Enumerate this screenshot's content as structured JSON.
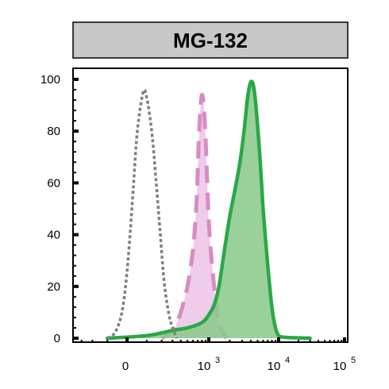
{
  "chart_data": {
    "type": "area",
    "title": "MG-132",
    "xlabel": "",
    "ylabel": "",
    "x_scale": "biexponential",
    "ylim": [
      0,
      100
    ],
    "y_ticks": [
      {
        "value": 0,
        "label": "0"
      },
      {
        "value": 20,
        "label": "20"
      },
      {
        "value": 40,
        "label": "40"
      },
      {
        "value": 60,
        "label": "60"
      },
      {
        "value": 80,
        "label": "80"
      },
      {
        "value": 100,
        "label": "100"
      }
    ],
    "x_ticks": [
      {
        "value": 0,
        "base": "0",
        "exp": ""
      },
      {
        "value": 1000,
        "base": "10",
        "exp": "3"
      },
      {
        "value": 10000,
        "base": "10",
        "exp": "4"
      },
      {
        "value": 100000,
        "base": "10",
        "exp": "5"
      }
    ],
    "grid": false,
    "colors": {
      "title_bg": "#c8c8c8",
      "control": "#808080",
      "pink_line": "#d98cc2",
      "pink_fill": "#eeccea",
      "green_line": "#2aa847",
      "green_fill": "#88c98a"
    },
    "series": [
      {
        "style": "dotted-gray-no-fill",
        "x": [
          -100,
          -60,
          -30,
          -10,
          10,
          30,
          50,
          80,
          100,
          130,
          160,
          190,
          220,
          260,
          300,
          350
        ],
        "values": [
          0,
          2,
          8,
          18,
          35,
          58,
          80,
          95,
          93,
          80,
          60,
          40,
          22,
          10,
          4,
          0
        ]
      },
      {
        "style": "dashed-pink-filled",
        "x": [
          200,
          280,
          340,
          400,
          450,
          500,
          560,
          620,
          680,
          720,
          760,
          800,
          850,
          900,
          950,
          1000,
          1100,
          1250,
          1400,
          1600,
          1800
        ],
        "values": [
          0,
          2,
          5,
          10,
          15,
          20,
          28,
          38,
          55,
          75,
          88,
          94,
          90,
          78,
          60,
          45,
          30,
          15,
          6,
          2,
          0
        ]
      },
      {
        "style": "solid-green-filled",
        "x": [
          -100,
          100,
          300,
          500,
          800,
          1000,
          1200,
          1400,
          1700,
          2000,
          2400,
          2800,
          3200,
          3600,
          4000,
          4400,
          4800,
          5400,
          6000,
          7000,
          8000,
          9000,
          10000,
          12000,
          15000,
          30000
        ],
        "values": [
          0,
          1,
          3,
          4,
          6,
          9,
          13,
          20,
          35,
          47,
          58,
          68,
          80,
          93,
          99,
          97,
          88,
          70,
          50,
          28,
          12,
          4,
          1,
          0.4,
          0.2,
          0
        ]
      }
    ]
  }
}
